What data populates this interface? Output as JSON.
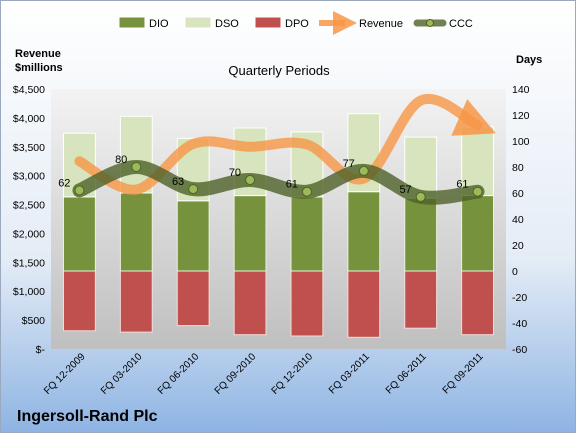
{
  "chart_data": {
    "type": "bar",
    "title": "Quarterly Periods",
    "company": "Ingersoll-Rand Plc",
    "left_axis_label_line1": "Revenue",
    "left_axis_label_line2": "$millions",
    "right_axis_label": "Days",
    "categories": [
      "FQ 12-2009",
      "FQ 03-2010",
      "FQ 06-2010",
      "FQ 09-2010",
      "FQ 12-2010",
      "FQ 03-2011",
      "FQ 06-2011",
      "FQ 09-2011"
    ],
    "days_axis": {
      "min": -60,
      "max": 140,
      "step": 20,
      "ticks": [
        "-60",
        "-40",
        "-20",
        "0",
        "20",
        "40",
        "60",
        "80",
        "100",
        "120",
        "140"
      ]
    },
    "revenue_axis": {
      "min": 0,
      "max": 4500,
      "step": 500,
      "ticks": [
        "$-",
        "$500",
        "$1,000",
        "$1,500",
        "$2,000",
        "$2,500",
        "$3,000",
        "$3,500",
        "$4,000",
        "$4,500"
      ]
    },
    "series": [
      {
        "name": "DIO",
        "type": "bar",
        "axis": "days",
        "color": "#76923c",
        "values": [
          57,
          60,
          54,
          58,
          57,
          61,
          56,
          58
        ]
      },
      {
        "name": "DSO",
        "type": "bar",
        "axis": "days",
        "color": "#d7e4bd",
        "values": [
          49,
          59,
          48,
          52,
          50,
          60,
          47,
          53
        ]
      },
      {
        "name": "DPO",
        "type": "bar",
        "axis": "days",
        "color": "#c0504d",
        "values": [
          -46,
          -47,
          -42,
          -49,
          -50,
          -51,
          -44,
          -49
        ]
      },
      {
        "name": "Revenue",
        "type": "line",
        "axis": "revenue",
        "color": "#f79646",
        "values": [
          3250,
          2760,
          3550,
          3500,
          3540,
          2950,
          4300,
          3870
        ]
      },
      {
        "name": "CCC",
        "type": "line",
        "axis": "days",
        "color": "#4f6228",
        "values": [
          62,
          80,
          63,
          70,
          61,
          77,
          57,
          61
        ],
        "labels": [
          "62",
          "80",
          "63",
          "70",
          "61",
          "77",
          "57",
          "61"
        ]
      }
    ],
    "legend_position": "top",
    "grid": false
  }
}
